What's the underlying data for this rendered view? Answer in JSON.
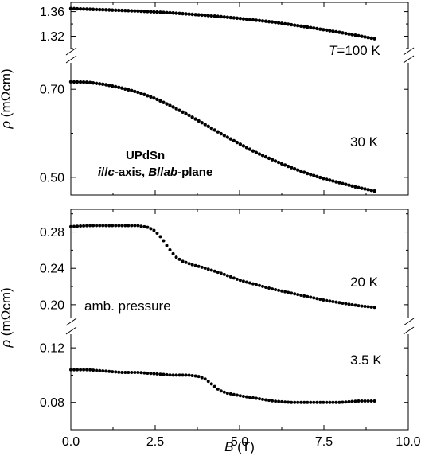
{
  "chart_data": {
    "type": "scatter",
    "x_axis": {
      "label_symbol": "B",
      "label_unit": "(T)",
      "range": [
        0,
        10
      ],
      "ticks": [
        "0.0",
        "2.5",
        "5.0",
        "7.5",
        "10.0"
      ]
    },
    "y_axis": {
      "label_symbol": "ρ",
      "label_unit": "(mΩcm)"
    },
    "panels": [
      {
        "name": "top",
        "annotation_title": "UPdSn",
        "annotation_line2": [
          "i",
          "//",
          "c",
          "-axis, ",
          "B",
          "//",
          "ab",
          "-plane"
        ],
        "segments": [
          {
            "name": "upper-break-segment",
            "ylim": [
              1.3,
              1.375
            ],
            "tick_labels": [
              "1.36",
              "1.32"
            ],
            "tick_values": [
              1.36,
              1.32
            ],
            "series": [
              {
                "label_parts": [
                  "T",
                  "=100 K"
                ],
                "x": [
                  0,
                  1,
                  2,
                  3,
                  4,
                  5,
                  6,
                  7,
                  8,
                  9
                ],
                "y": [
                  1.365,
                  1.363,
                  1.361,
                  1.358,
                  1.354,
                  1.349,
                  1.343,
                  1.335,
                  1.326,
                  1.316
                ]
              }
            ]
          },
          {
            "name": "lower-break-segment",
            "ylim": [
              0.46,
              0.76
            ],
            "tick_labels": [
              "0.70",
              "0.50"
            ],
            "tick_values": [
              0.7,
              0.5
            ],
            "series": [
              {
                "label": "30 K",
                "x": [
                  0,
                  0.5,
                  1,
                  1.5,
                  2,
                  2.5,
                  3,
                  3.5,
                  4,
                  4.5,
                  5,
                  5.5,
                  6,
                  6.5,
                  7,
                  7.5,
                  8,
                  8.5,
                  9
                ],
                "y": [
                  0.717,
                  0.716,
                  0.711,
                  0.703,
                  0.693,
                  0.679,
                  0.661,
                  0.641,
                  0.619,
                  0.597,
                  0.576,
                  0.556,
                  0.539,
                  0.523,
                  0.509,
                  0.497,
                  0.487,
                  0.477,
                  0.469
                ]
              }
            ]
          }
        ]
      },
      {
        "name": "bottom",
        "annotation": "amb. pressure",
        "segments": [
          {
            "name": "upper-break-segment",
            "ylim": [
              0.185,
              0.305
            ],
            "tick_labels": [
              "0.28",
              "0.24",
              "0.20"
            ],
            "tick_values": [
              0.28,
              0.24,
              0.2
            ],
            "series": [
              {
                "label": "20 K",
                "x": [
                  0,
                  0.5,
                  1,
                  1.5,
                  2,
                  2.3,
                  2.5,
                  2.7,
                  2.9,
                  3.1,
                  3.3,
                  3.6,
                  4,
                  4.5,
                  5,
                  5.5,
                  6,
                  6.5,
                  7,
                  7.5,
                  8,
                  8.5,
                  9
                ],
                "y": [
                  0.286,
                  0.287,
                  0.287,
                  0.287,
                  0.287,
                  0.285,
                  0.281,
                  0.273,
                  0.262,
                  0.253,
                  0.248,
                  0.244,
                  0.24,
                  0.234,
                  0.227,
                  0.222,
                  0.217,
                  0.213,
                  0.209,
                  0.205,
                  0.202,
                  0.199,
                  0.197
                ]
              }
            ]
          },
          {
            "name": "lower-break-segment",
            "ylim": [
              0.06,
              0.13
            ],
            "tick_labels": [
              "0.12",
              "0.08"
            ],
            "tick_values": [
              0.12,
              0.08
            ],
            "series": [
              {
                "label": "3.5 K",
                "x": [
                  0,
                  0.5,
                  1,
                  1.5,
                  2,
                  2.5,
                  3,
                  3.5,
                  3.8,
                  4,
                  4.2,
                  4.4,
                  4.6,
                  5,
                  5.5,
                  6,
                  6.5,
                  7,
                  7.5,
                  8,
                  8.5,
                  9
                ],
                "y": [
                  0.104,
                  0.104,
                  0.103,
                  0.102,
                  0.102,
                  0.101,
                  0.1,
                  0.1,
                  0.099,
                  0.097,
                  0.093,
                  0.089,
                  0.087,
                  0.085,
                  0.083,
                  0.081,
                  0.08,
                  0.08,
                  0.08,
                  0.08,
                  0.081,
                  0.081
                ]
              }
            ]
          }
        ]
      }
    ]
  }
}
